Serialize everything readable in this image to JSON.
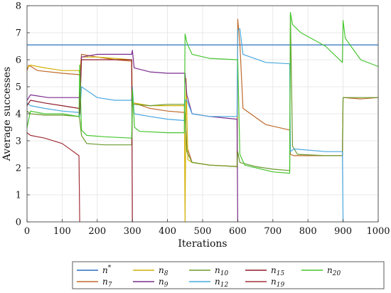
{
  "chart_data": {
    "type": "line",
    "title": "",
    "xlabel": "Iterations",
    "ylabel": "Average successes",
    "xlim": [
      0,
      1000
    ],
    "ylim": [
      0,
      8
    ],
    "xticks": [
      "0",
      "100",
      "200",
      "300",
      "400",
      "500",
      "600",
      "700",
      "800",
      "900",
      "1000"
    ],
    "yticks": [
      "0",
      "1",
      "2",
      "3",
      "4",
      "5",
      "6",
      "7",
      "8"
    ],
    "grid": true,
    "legend_position": "bottom",
    "series": [
      {
        "name": "n*",
        "label_base": "n",
        "label_sup": "*",
        "label_sub": "",
        "color": "#2a6fbd",
        "points": [
          [
            0,
            6.55
          ],
          [
            1000,
            6.55
          ]
        ]
      },
      {
        "name": "n7",
        "label_base": "n",
        "label_sup": "",
        "label_sub": "7",
        "color": "#c0692a",
        "points": [
          [
            0,
            5.6
          ],
          [
            5,
            5.8
          ],
          [
            30,
            5.6
          ],
          [
            100,
            5.5
          ],
          [
            148,
            5.45
          ],
          [
            150,
            5.4
          ],
          [
            155,
            6.2
          ],
          [
            200,
            6.1
          ],
          [
            250,
            6.0
          ],
          [
            298,
            5.95
          ],
          [
            300,
            4.3
          ],
          [
            305,
            4.4
          ],
          [
            350,
            4.2
          ],
          [
            400,
            4.1
          ],
          [
            448,
            4.05
          ],
          [
            450,
            4.0
          ],
          [
            455,
            2.8
          ],
          [
            470,
            2.2
          ],
          [
            520,
            2.1
          ],
          [
            598,
            2.05
          ],
          [
            600,
            7.5
          ],
          [
            606,
            6.6
          ],
          [
            615,
            4.2
          ],
          [
            680,
            3.6
          ],
          [
            748,
            3.4
          ],
          [
            750,
            2.5
          ],
          [
            760,
            2.45
          ],
          [
            850,
            2.45
          ],
          [
            898,
            2.45
          ],
          [
            900,
            4.6
          ],
          [
            950,
            4.55
          ],
          [
            1000,
            4.6
          ]
        ]
      },
      {
        "name": "n8",
        "label_base": "n",
        "label_sup": "",
        "label_sub": "8",
        "color": "#d4b106",
        "points": [
          [
            0,
            5.7
          ],
          [
            10,
            5.8
          ],
          [
            50,
            5.7
          ],
          [
            100,
            5.6
          ],
          [
            148,
            5.6
          ],
          [
            150,
            5.5
          ],
          [
            155,
            6.1
          ],
          [
            200,
            6.1
          ],
          [
            250,
            6.05
          ],
          [
            298,
            6.0
          ],
          [
            300,
            4.3
          ],
          [
            305,
            4.4
          ],
          [
            350,
            4.3
          ],
          [
            400,
            4.3
          ],
          [
            448,
            4.3
          ],
          [
            450,
            0.0
          ],
          [
            453,
            5.3
          ],
          [
            458,
            2.3
          ],
          [
            470,
            2.2
          ],
          [
            520,
            2.1
          ],
          [
            598,
            2.05
          ],
          [
            600,
            2.0
          ]
        ]
      },
      {
        "name": "n9",
        "label_base": "n",
        "label_sup": "",
        "label_sub": "9",
        "color": "#7b2d8e",
        "points": [
          [
            0,
            4.5
          ],
          [
            10,
            4.7
          ],
          [
            60,
            4.6
          ],
          [
            120,
            4.6
          ],
          [
            148,
            4.6
          ],
          [
            150,
            4.5
          ],
          [
            155,
            6.1
          ],
          [
            200,
            6.2
          ],
          [
            250,
            6.2
          ],
          [
            298,
            6.2
          ],
          [
            300,
            6.35
          ],
          [
            305,
            5.7
          ],
          [
            350,
            5.55
          ],
          [
            400,
            5.5
          ],
          [
            448,
            5.5
          ],
          [
            450,
            5.5
          ],
          [
            455,
            4.7
          ],
          [
            470,
            4.0
          ],
          [
            520,
            3.9
          ],
          [
            598,
            3.8
          ],
          [
            600,
            0.0
          ]
        ]
      },
      {
        "name": "n10",
        "label_base": "n",
        "label_sup": "",
        "label_sub": "10",
        "color": "#6b9a2c",
        "points": [
          [
            0,
            4.1
          ],
          [
            10,
            4.0
          ],
          [
            50,
            3.95
          ],
          [
            100,
            3.95
          ],
          [
            148,
            3.9
          ],
          [
            150,
            3.8
          ],
          [
            155,
            3.2
          ],
          [
            170,
            2.9
          ],
          [
            220,
            2.85
          ],
          [
            298,
            2.85
          ],
          [
            300,
            4.3
          ],
          [
            305,
            4.35
          ],
          [
            350,
            4.3
          ],
          [
            400,
            4.35
          ],
          [
            448,
            4.35
          ],
          [
            450,
            4.0
          ],
          [
            455,
            2.6
          ],
          [
            470,
            2.2
          ],
          [
            520,
            2.1
          ],
          [
            598,
            2.05
          ],
          [
            600,
            2.6
          ],
          [
            606,
            2.2
          ],
          [
            650,
            2.05
          ],
          [
            700,
            1.95
          ],
          [
            748,
            1.9
          ],
          [
            750,
            7.7
          ],
          [
            756,
            2.8
          ],
          [
            770,
            2.5
          ],
          [
            850,
            2.45
          ],
          [
            898,
            2.45
          ],
          [
            900,
            4.6
          ],
          [
            950,
            4.6
          ],
          [
            1000,
            4.6
          ]
        ]
      },
      {
        "name": "n12",
        "label_base": "n",
        "label_sup": "",
        "label_sub": "12",
        "color": "#4aa8de",
        "points": [
          [
            0,
            4.4
          ],
          [
            10,
            4.3
          ],
          [
            50,
            4.2
          ],
          [
            100,
            4.1
          ],
          [
            148,
            4.05
          ],
          [
            150,
            3.9
          ],
          [
            155,
            5.0
          ],
          [
            200,
            4.6
          ],
          [
            250,
            4.5
          ],
          [
            298,
            4.5
          ],
          [
            300,
            5.0
          ],
          [
            305,
            4.0
          ],
          [
            350,
            3.9
          ],
          [
            400,
            3.8
          ],
          [
            448,
            3.75
          ],
          [
            450,
            4.5
          ],
          [
            455,
            4.5
          ],
          [
            470,
            4.0
          ],
          [
            520,
            3.9
          ],
          [
            598,
            3.9
          ],
          [
            600,
            7.1
          ],
          [
            606,
            7.15
          ],
          [
            615,
            6.2
          ],
          [
            680,
            5.9
          ],
          [
            748,
            5.85
          ],
          [
            750,
            2.6
          ],
          [
            760,
            2.7
          ],
          [
            850,
            2.6
          ],
          [
            898,
            2.6
          ],
          [
            900,
            0.0
          ]
        ]
      },
      {
        "name": "n15",
        "label_base": "n",
        "label_sup": "",
        "label_sub": "15",
        "color": "#8f1d2c",
        "points": [
          [
            0,
            4.3
          ],
          [
            10,
            4.5
          ],
          [
            50,
            4.4
          ],
          [
            100,
            4.3
          ],
          [
            148,
            4.2
          ],
          [
            150,
            4.0
          ],
          [
            155,
            6.0
          ],
          [
            200,
            6.0
          ],
          [
            250,
            6.0
          ],
          [
            298,
            6.0
          ],
          [
            300,
            0.0
          ]
        ]
      },
      {
        "name": "n19",
        "label_base": "n",
        "label_sup": "",
        "label_sub": "19",
        "color": "#a3303a",
        "points": [
          [
            0,
            3.3
          ],
          [
            10,
            3.2
          ],
          [
            50,
            3.1
          ],
          [
            100,
            2.9
          ],
          [
            148,
            2.45
          ],
          [
            150,
            0.0
          ]
        ]
      },
      {
        "name": "n20",
        "label_base": "n",
        "label_sup": "",
        "label_sub": "20",
        "color": "#46c62f",
        "points": [
          [
            0,
            3.5
          ],
          [
            10,
            4.1
          ],
          [
            50,
            4.0
          ],
          [
            100,
            4.0
          ],
          [
            148,
            3.9
          ],
          [
            150,
            5.8
          ],
          [
            155,
            3.4
          ],
          [
            170,
            3.2
          ],
          [
            220,
            3.15
          ],
          [
            298,
            3.1
          ],
          [
            300,
            4.9
          ],
          [
            306,
            3.5
          ],
          [
            320,
            3.35
          ],
          [
            400,
            3.3
          ],
          [
            448,
            3.3
          ],
          [
            450,
            6.95
          ],
          [
            456,
            6.6
          ],
          [
            470,
            6.2
          ],
          [
            520,
            6.05
          ],
          [
            598,
            6.0
          ],
          [
            600,
            6.0
          ],
          [
            606,
            2.5
          ],
          [
            620,
            2.1
          ],
          [
            700,
            1.85
          ],
          [
            748,
            1.8
          ],
          [
            750,
            7.75
          ],
          [
            756,
            7.3
          ],
          [
            780,
            7.0
          ],
          [
            850,
            6.5
          ],
          [
            898,
            5.9
          ],
          [
            900,
            7.45
          ],
          [
            906,
            6.8
          ],
          [
            950,
            6.0
          ],
          [
            1000,
            5.75
          ]
        ]
      }
    ]
  }
}
